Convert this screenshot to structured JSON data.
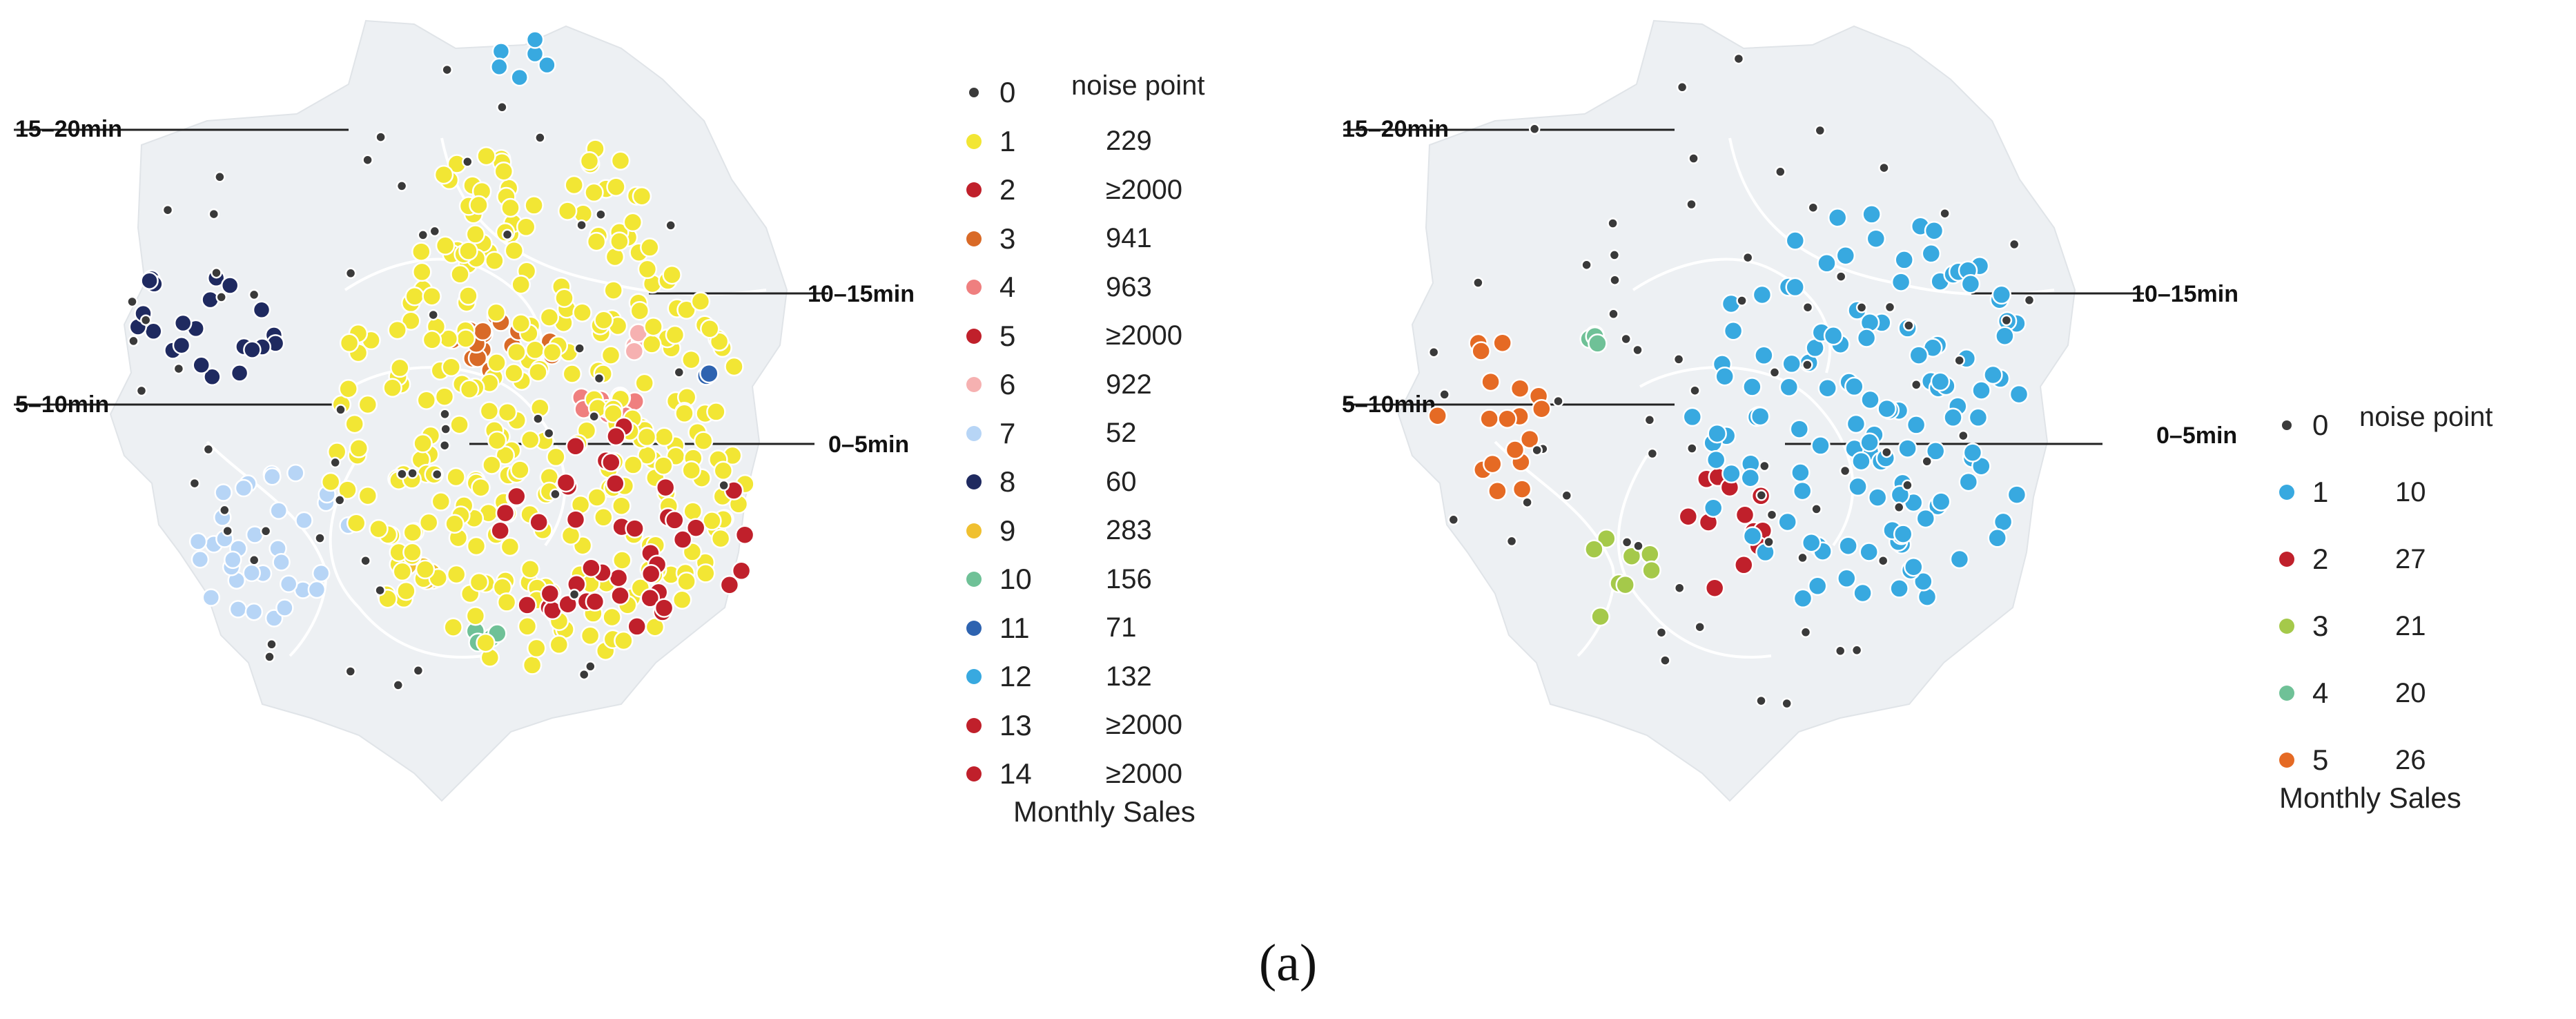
{
  "figure": {
    "caption": "(a)"
  },
  "colors": {
    "region_fill": "#edf0f3",
    "boundary": "#ffffff",
    "noise": "#3a3a3a"
  },
  "panels": [
    {
      "id": "left",
      "legend_header": "noise point",
      "legend_footer": "Monthly Sales",
      "ring_labels": [
        "15–20min",
        "10–15min",
        "5–10min",
        "0–5min"
      ],
      "clusters": [
        {
          "id": "0",
          "value": "",
          "color": "#3a3a3a"
        },
        {
          "id": "1",
          "value": "229",
          "color": "#f2e634"
        },
        {
          "id": "2",
          "value": "≥2000",
          "color": "#c0202b"
        },
        {
          "id": "3",
          "value": "941",
          "color": "#d96a27"
        },
        {
          "id": "4",
          "value": "963",
          "color": "#ef7f7f"
        },
        {
          "id": "5",
          "value": "≥2000",
          "color": "#c0202b"
        },
        {
          "id": "6",
          "value": "922",
          "color": "#f6b1b1"
        },
        {
          "id": "7",
          "value": "52",
          "color": "#b7d5f6"
        },
        {
          "id": "8",
          "value": "60",
          "color": "#1f2a60"
        },
        {
          "id": "9",
          "value": "283",
          "color": "#f0c030"
        },
        {
          "id": "10",
          "value": "156",
          "color": "#6fc197"
        },
        {
          "id": "11",
          "value": "71",
          "color": "#2e63b0"
        },
        {
          "id": "12",
          "value": "132",
          "color": "#38a9e0"
        },
        {
          "id": "13",
          "value": "≥2000",
          "color": "#c0202b"
        },
        {
          "id": "14",
          "value": "≥2000",
          "color": "#c0202b"
        }
      ]
    },
    {
      "id": "right",
      "legend_header": "noise point",
      "legend_footer": "Monthly Sales",
      "ring_labels": [
        "15–20min",
        "10–15min",
        "5–10min",
        "0–5min"
      ],
      "clusters": [
        {
          "id": "0",
          "value": "",
          "color": "#3a3a3a"
        },
        {
          "id": "1",
          "value": "10",
          "color": "#38a9e0"
        },
        {
          "id": "2",
          "value": "27",
          "color": "#c0202b"
        },
        {
          "id": "3",
          "value": "21",
          "color": "#a5c94a"
        },
        {
          "id": "4",
          "value": "20",
          "color": "#6fc197"
        },
        {
          "id": "5",
          "value": "26",
          "color": "#e56a24"
        }
      ]
    }
  ]
}
